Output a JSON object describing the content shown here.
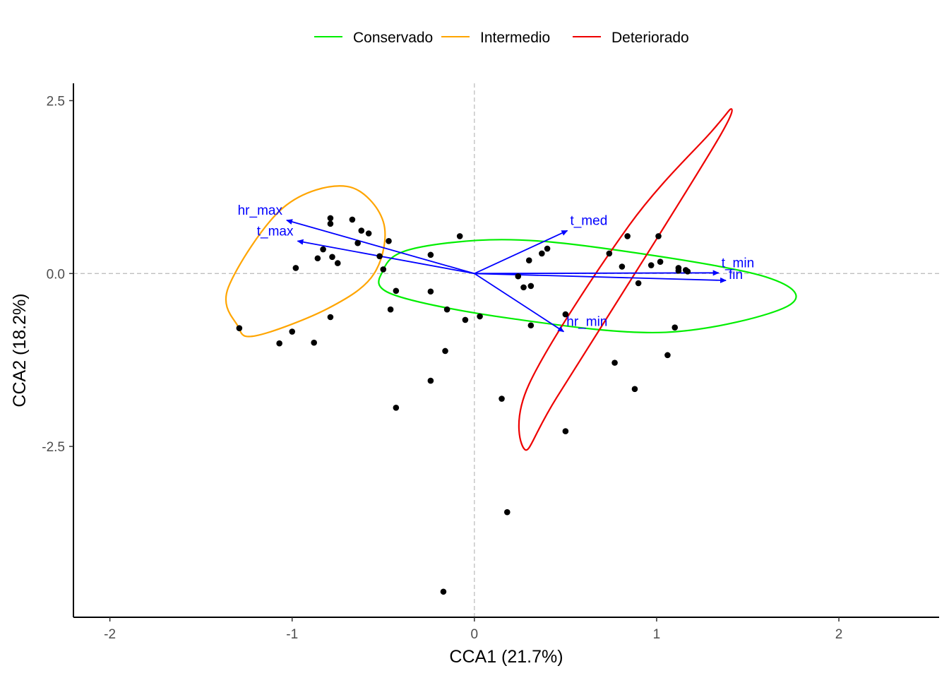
{
  "chart_data": {
    "type": "scatter",
    "xlabel": "CCA1 (21.7%)",
    "ylabel": "CCA2 (18.2%)",
    "xlim": [
      -2.2,
      2.55
    ],
    "ylim": [
      -4.97,
      2.75
    ],
    "x_ticks": [
      -2,
      -1,
      0,
      1,
      2
    ],
    "x_tick_labels": [
      "-2",
      "-1",
      "0",
      "1",
      "2"
    ],
    "y_ticks": [
      2.5,
      0,
      -2.5
    ],
    "y_tick_labels": [
      "2.5",
      "0.0",
      "-2.5"
    ],
    "reference_lines": {
      "x": 0,
      "y": 0,
      "style": "dashed",
      "color": "#bfbfbf"
    },
    "legend": {
      "position": "top",
      "entries": [
        {
          "label": "Conservado",
          "color": "#00ee00"
        },
        {
          "label": "Intermedio",
          "color": "#ffa500"
        },
        {
          "label": "Deteriorado",
          "color": "#ee0000"
        }
      ]
    },
    "ellipses": [
      {
        "group": "Conservado",
        "color": "#00ee00",
        "points": [
          [
            -0.5,
            0.05
          ],
          [
            -0.45,
            -0.3
          ],
          [
            0.2,
            -0.65
          ],
          [
            1.05,
            -0.85
          ],
          [
            1.72,
            -0.47
          ],
          [
            1.6,
            -0.05
          ],
          [
            0.75,
            0.35
          ],
          [
            0.15,
            0.49
          ],
          [
            -0.35,
            0.35
          ]
        ]
      },
      {
        "group": "Intermedio",
        "color": "#ffa500",
        "points": [
          [
            -1.3,
            -0.75
          ],
          [
            -1.2,
            -0.9
          ],
          [
            -0.8,
            -0.5
          ],
          [
            -0.55,
            0.0
          ],
          [
            -0.5,
            0.75
          ],
          [
            -0.7,
            1.26
          ],
          [
            -1.05,
            0.95
          ],
          [
            -1.35,
            -0.2
          ]
        ]
      },
      {
        "group": "Deteriorado",
        "color": "#ee0000",
        "points": [
          [
            0.28,
            -2.55
          ],
          [
            0.45,
            -1.8
          ],
          [
            1.0,
            0.5
          ],
          [
            1.35,
            2.0
          ],
          [
            1.41,
            2.38
          ],
          [
            1.3,
            2.05
          ],
          [
            0.85,
            0.7
          ],
          [
            0.3,
            -1.6
          ]
        ]
      }
    ],
    "vectors": [
      {
        "name": "hr_max",
        "end": [
          -1.03,
          0.77
        ]
      },
      {
        "name": "t_max",
        "end": [
          -0.97,
          0.47
        ]
      },
      {
        "name": "t_med",
        "end": [
          0.51,
          0.62
        ]
      },
      {
        "name": "t_min",
        "end": [
          1.34,
          0.01
        ]
      },
      {
        "name": "hr_min",
        "end": [
          0.49,
          -0.84
        ]
      },
      {
        "name": "fin",
        "end": [
          1.38,
          -0.1
        ]
      }
    ],
    "vector_color": "#0000ff",
    "points": [
      [
        -0.79,
        0.8
      ],
      [
        -0.79,
        0.72
      ],
      [
        -0.67,
        0.78
      ],
      [
        -0.62,
        0.62
      ],
      [
        -0.58,
        0.58
      ],
      [
        -0.47,
        0.47
      ],
      [
        -0.64,
        0.44
      ],
      [
        -0.83,
        0.35
      ],
      [
        -0.86,
        0.22
      ],
      [
        -0.78,
        0.24
      ],
      [
        -0.75,
        0.15
      ],
      [
        -0.98,
        0.08
      ],
      [
        -0.52,
        0.25
      ],
      [
        -0.5,
        0.06
      ],
      [
        -0.24,
        0.27
      ],
      [
        -0.08,
        0.54
      ],
      [
        -1.29,
        -0.79
      ],
      [
        -1.07,
        -1.01
      ],
      [
        -1.0,
        -0.84
      ],
      [
        -0.88,
        -1.0
      ],
      [
        -0.79,
        -0.63
      ],
      [
        -0.46,
        -0.52
      ],
      [
        -0.43,
        -0.25
      ],
      [
        -0.24,
        -0.26
      ],
      [
        -0.15,
        -0.52
      ],
      [
        -0.05,
        -0.67
      ],
      [
        0.03,
        -0.62
      ],
      [
        -0.16,
        -1.12
      ],
      [
        -0.24,
        -1.55
      ],
      [
        -0.43,
        -1.94
      ],
      [
        0.15,
        -1.81
      ],
      [
        0.18,
        -3.45
      ],
      [
        -0.17,
        -4.6
      ],
      [
        0.24,
        -0.04
      ],
      [
        0.27,
        -0.2
      ],
      [
        0.31,
        -0.18
      ],
      [
        0.3,
        0.19
      ],
      [
        0.37,
        0.29
      ],
      [
        0.4,
        0.36
      ],
      [
        0.5,
        -0.59
      ],
      [
        0.31,
        -0.75
      ],
      [
        0.5,
        -2.28
      ],
      [
        0.74,
        0.29
      ],
      [
        0.84,
        0.54
      ],
      [
        1.01,
        0.54
      ],
      [
        0.81,
        0.1
      ],
      [
        0.97,
        0.12
      ],
      [
        1.02,
        0.17
      ],
      [
        0.9,
        -0.14
      ],
      [
        1.12,
        0.08
      ],
      [
        1.12,
        0.04
      ],
      [
        1.16,
        0.05
      ],
      [
        1.17,
        0.03
      ],
      [
        1.1,
        -0.78
      ],
      [
        1.06,
        -1.18
      ],
      [
        0.77,
        -1.29
      ],
      [
        0.88,
        -1.67
      ]
    ]
  }
}
